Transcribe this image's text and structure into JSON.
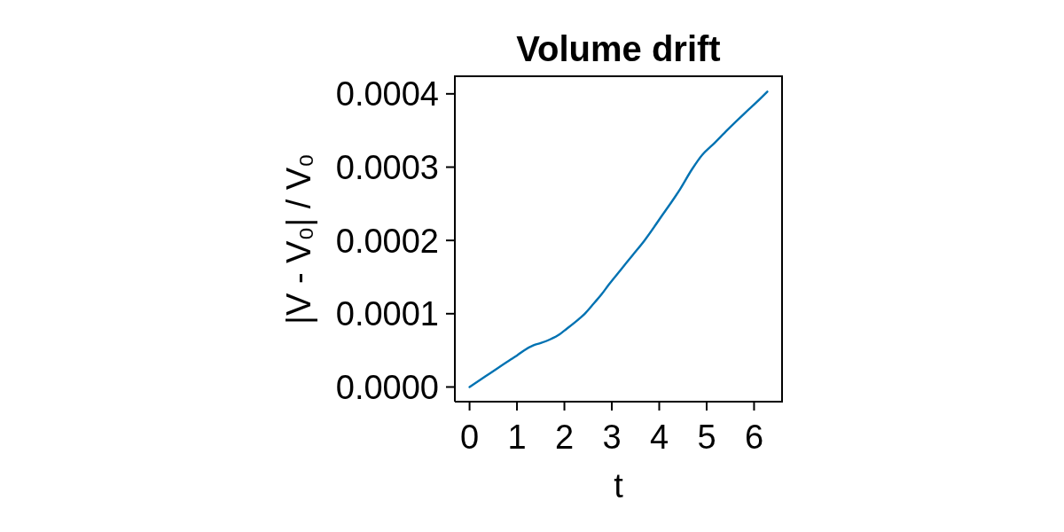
{
  "chart_data": {
    "type": "line",
    "title": "Volume drift",
    "xlabel": "t",
    "ylabel": "|V - V₀| / V₀",
    "x": [
      0,
      0.44,
      0.88,
      1.0,
      1.15,
      1.35,
      1.5,
      1.7,
      1.9,
      2.0,
      2.31,
      2.43,
      2.62,
      2.79,
      2.94,
      3.19,
      3.44,
      3.69,
      4.06,
      4.44,
      4.69,
      4.91,
      5.12,
      5.44,
      5.81,
      6.06,
      6.28
    ],
    "series": [
      {
        "color": "#0072b2",
        "values": [
          0,
          1.9e-05,
          3.8e-05,
          4.3e-05,
          5e-05,
          5.7e-05,
          6e-05,
          6.5e-05,
          7.2e-05,
          7.7e-05,
          9.3e-05,
          0.0001,
          0.000114,
          0.000127,
          0.00014,
          0.00016,
          0.00018,
          0.0002,
          0.000234,
          0.00027,
          0.000297,
          0.000317,
          0.00033,
          0.000351,
          0.000374,
          0.000389,
          0.000403
        ]
      }
    ],
    "xlim": [
      -0.31,
      6.59
    ],
    "ylim": [
      -2e-05,
      0.000424
    ],
    "xticks": [
      0,
      1,
      2,
      3,
      4,
      5,
      6
    ],
    "yticks": [
      {
        "value": 0,
        "label": "0.0000"
      },
      0.0001,
      0.0002,
      0.0003,
      0.0004
    ]
  }
}
